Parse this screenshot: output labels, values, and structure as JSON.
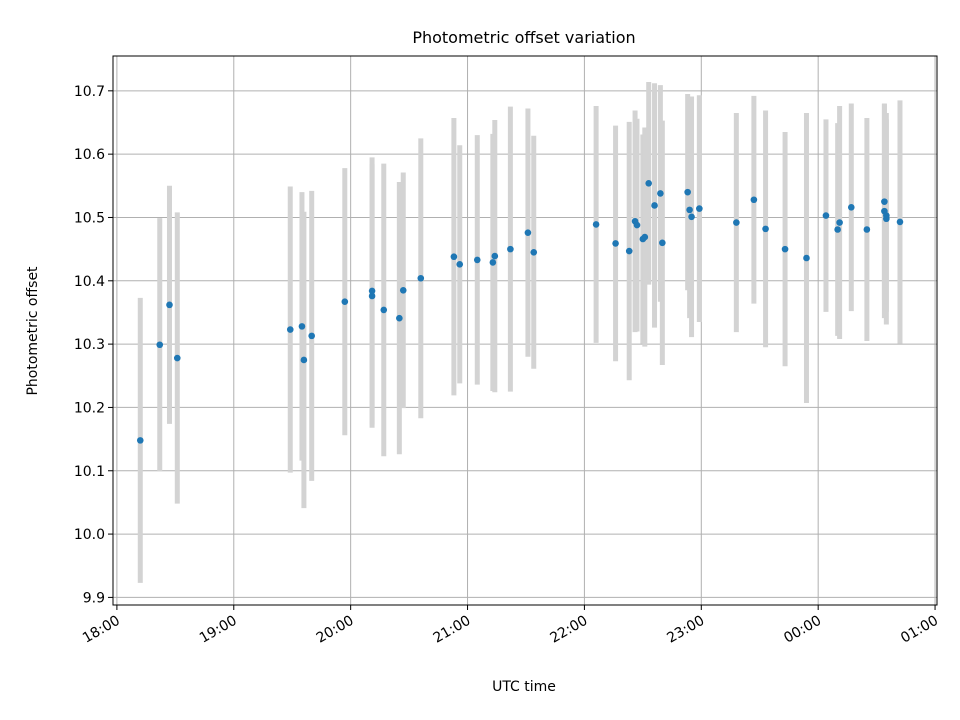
{
  "chart_data": {
    "type": "scatter",
    "title": "Photometric offset variation",
    "xlabel": "UTC time",
    "ylabel": "Photometric offset",
    "x_ticks": [
      "18:00",
      "19:00",
      "20:00",
      "21:00",
      "22:00",
      "23:00",
      "00:00",
      "01:00"
    ],
    "y_ticks": [
      "9.9",
      "10.0",
      "10.1",
      "10.2",
      "10.3",
      "10.4",
      "10.5",
      "10.6",
      "10.7"
    ],
    "xlim": [
      "17:58",
      "01:01"
    ],
    "ylim": [
      9.888,
      10.755
    ],
    "grid": true,
    "colors": {
      "points": "#1f77b4",
      "errorbars": "#d3d3d3",
      "grid": "#b0b0b0"
    },
    "series": [
      {
        "x": [
          "18:12",
          "18:22",
          "18:27",
          "18:31",
          "19:29",
          "19:35",
          "19:36",
          "19:40",
          "19:57",
          "20:11",
          "20:11",
          "20:17",
          "20:25",
          "20:27",
          "20:36",
          "20:53",
          "20:56",
          "21:05",
          "21:13",
          "21:14",
          "21:22",
          "21:31",
          "21:34",
          "22:06",
          "22:16",
          "22:23",
          "22:26",
          "22:27",
          "22:30",
          "22:31",
          "22:33",
          "22:36",
          "22:39",
          "22:40",
          "22:53",
          "22:54",
          "22:55",
          "22:59",
          "23:18",
          "23:27",
          "23:33",
          "23:43",
          "23:54",
          "00:04",
          "00:10",
          "00:11",
          "00:17",
          "00:25",
          "00:34",
          "00:34",
          "00:35",
          "00:35",
          "00:42"
        ],
        "y": [
          10.148,
          10.299,
          10.362,
          10.278,
          10.323,
          10.328,
          10.275,
          10.313,
          10.367,
          10.376,
          10.384,
          10.354,
          10.341,
          10.385,
          10.404,
          10.438,
          10.426,
          10.433,
          10.429,
          10.439,
          10.45,
          10.476,
          10.445,
          10.489,
          10.459,
          10.447,
          10.494,
          10.488,
          10.466,
          10.469,
          10.554,
          10.519,
          10.538,
          10.46,
          10.54,
          10.512,
          10.501,
          10.514,
          10.492,
          10.528,
          10.482,
          10.45,
          10.436,
          10.503,
          10.481,
          10.492,
          10.516,
          10.481,
          10.525,
          10.51,
          10.503,
          10.498,
          10.493
        ],
        "error": [
          0.225,
          0.2,
          0.188,
          0.23,
          0.226,
          0.212,
          0.234,
          0.229,
          0.211,
          0.208,
          0.211,
          0.231,
          0.215,
          0.186,
          0.221,
          0.219,
          0.188,
          0.197,
          0.203,
          0.215,
          0.225,
          0.196,
          0.184,
          0.187,
          0.186,
          0.204,
          0.175,
          0.168,
          0.165,
          0.173,
          0.16,
          0.193,
          0.171,
          0.193,
          0.155,
          0.171,
          0.19,
          0.179,
          0.173,
          0.164,
          0.187,
          0.185,
          0.229,
          0.152,
          0.168,
          0.184,
          0.164,
          0.176,
          0.155,
          0.169,
          0.152,
          0.167,
          0.192
        ]
      }
    ]
  }
}
